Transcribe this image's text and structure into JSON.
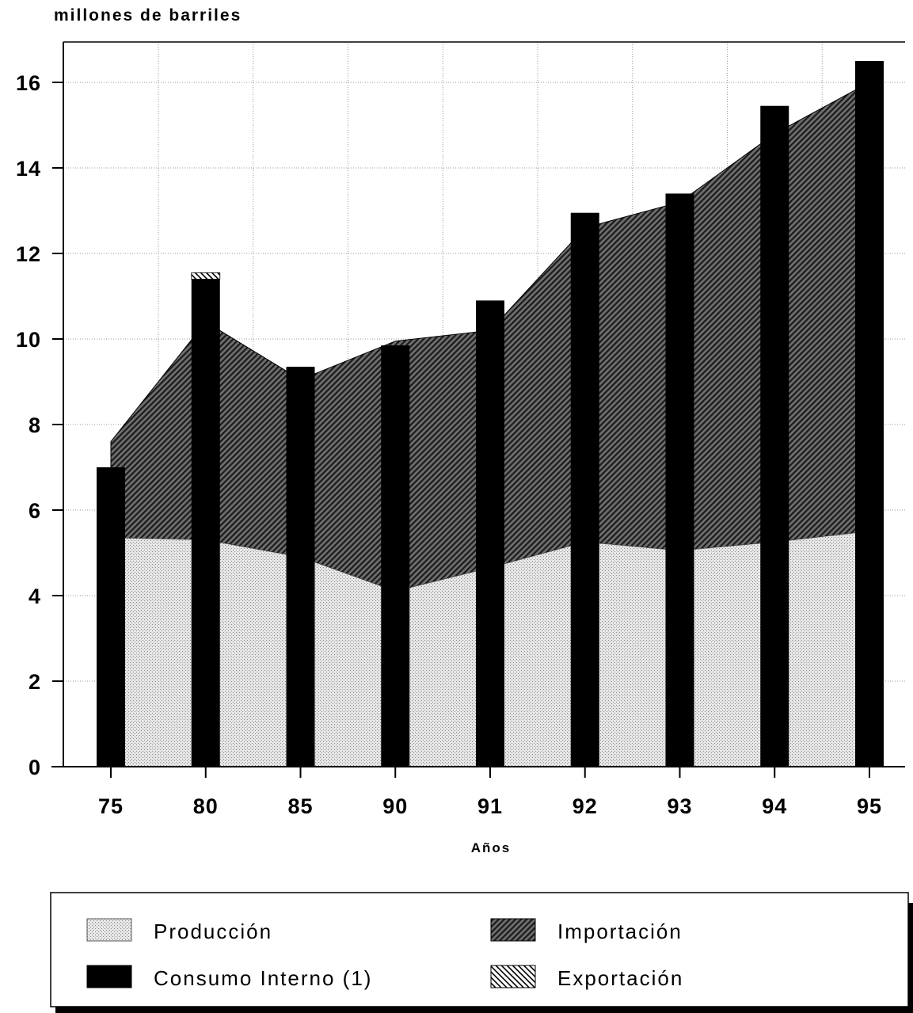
{
  "chart_data": {
    "type": "bar",
    "title": "",
    "ylabel": "millones de barriles",
    "xlabel": "Años",
    "ylim": [
      0,
      17
    ],
    "yticks": [
      "0",
      "2",
      "4",
      "6",
      "8",
      "10",
      "12",
      "14",
      "16"
    ],
    "categories": [
      "75",
      "80",
      "85",
      "90",
      "91",
      "92",
      "93",
      "94",
      "95"
    ],
    "grid": true,
    "legend_position": "bottom",
    "series": [
      {
        "name": "Producción",
        "kind": "area",
        "pattern": "dots",
        "color": "#d9d9d9",
        "values": [
          5.35,
          5.3,
          4.9,
          4.1,
          4.65,
          5.25,
          5.05,
          5.25,
          5.5
        ]
      },
      {
        "name": "Importación",
        "kind": "area",
        "pattern": "diagonal-hatch",
        "color": "#555555",
        "values": [
          7.6,
          10.4,
          9.05,
          9.95,
          10.2,
          12.6,
          13.2,
          14.8,
          16.0
        ]
      },
      {
        "name": "Consumo Interno (1)",
        "kind": "bar",
        "color": "#000000",
        "values": [
          7.0,
          11.4,
          9.35,
          9.85,
          10.9,
          12.95,
          13.4,
          15.45,
          16.5
        ]
      },
      {
        "name": "Exportación",
        "kind": "bar-cap",
        "pattern": "reverse-hatch",
        "color": "#888888",
        "values": [
          0,
          0.15,
          0,
          0,
          0,
          0,
          0,
          0,
          0
        ]
      }
    ]
  }
}
